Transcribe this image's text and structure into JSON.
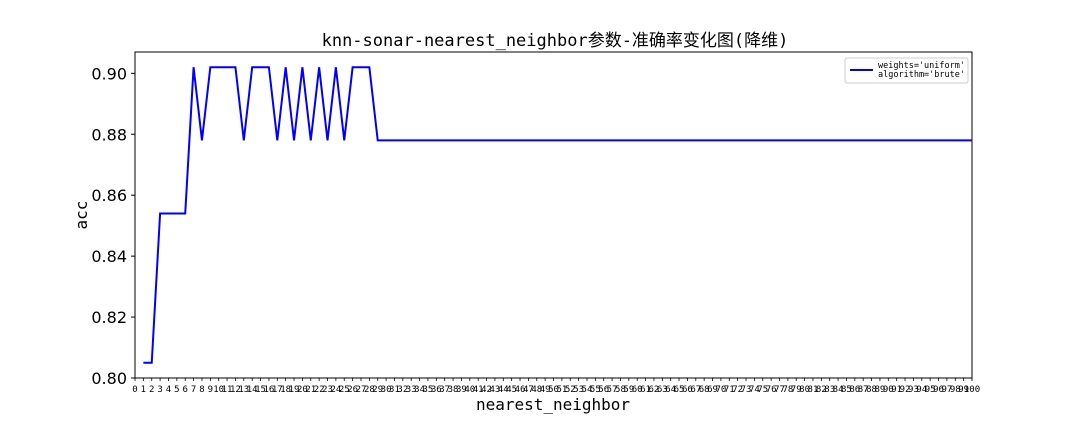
{
  "chart_data": {
    "type": "line",
    "title": "knn-sonar-nearest_neighbor参数-准确率变化图(降维)",
    "xlabel": "nearest_neighbor",
    "ylabel": "acc",
    "xlim": [
      0,
      100
    ],
    "ylim": [
      0.8,
      0.907
    ],
    "yticks": [
      0.8,
      0.82,
      0.84,
      0.86,
      0.88,
      0.9
    ],
    "ytick_labels": [
      "0.80",
      "0.82",
      "0.84",
      "0.86",
      "0.88",
      "0.90"
    ],
    "xticks": [
      0,
      1,
      2,
      3,
      4,
      5,
      6,
      7,
      8,
      9,
      10,
      11,
      12,
      13,
      14,
      15,
      16,
      17,
      18,
      19,
      20,
      21,
      22,
      23,
      24,
      25,
      26,
      27,
      28,
      29,
      30,
      31,
      32,
      33,
      34,
      35,
      36,
      37,
      38,
      39,
      40,
      41,
      42,
      43,
      44,
      45,
      46,
      47,
      48,
      49,
      50,
      51,
      52,
      53,
      54,
      55,
      56,
      57,
      58,
      59,
      60,
      61,
      62,
      63,
      64,
      65,
      66,
      67,
      68,
      69,
      70,
      71,
      72,
      73,
      74,
      75,
      76,
      77,
      78,
      79,
      80,
      81,
      82,
      83,
      84,
      85,
      86,
      87,
      88,
      89,
      90,
      91,
      92,
      93,
      94,
      95,
      96,
      97,
      98,
      99,
      100
    ],
    "legend": {
      "position": "top-right",
      "entries": [
        "weights='uniform'\nalgorithm='brute'"
      ]
    },
    "series": [
      {
        "name": "weights='uniform'\nalgorithm='brute'",
        "color": "#0000ff",
        "x": [
          1,
          2,
          3,
          4,
          5,
          6,
          7,
          8,
          9,
          10,
          11,
          12,
          13,
          14,
          15,
          16,
          17,
          18,
          19,
          20,
          21,
          22,
          23,
          24,
          25,
          26,
          27,
          28,
          29,
          30,
          31,
          32,
          33,
          34,
          35,
          36,
          37,
          38,
          39,
          40,
          41,
          42,
          43,
          44,
          45,
          46,
          47,
          48,
          49,
          50,
          51,
          52,
          53,
          54,
          55,
          56,
          57,
          58,
          59,
          60,
          61,
          62,
          63,
          64,
          65,
          66,
          67,
          68,
          69,
          70,
          71,
          72,
          73,
          74,
          75,
          76,
          77,
          78,
          79,
          80,
          81,
          82,
          83,
          84,
          85,
          86,
          87,
          88,
          89,
          90,
          91,
          92,
          93,
          94,
          95,
          96,
          97,
          98,
          99,
          100
        ],
        "y": [
          0.805,
          0.805,
          0.854,
          0.854,
          0.854,
          0.854,
          0.902,
          0.878,
          0.902,
          0.902,
          0.902,
          0.902,
          0.878,
          0.902,
          0.902,
          0.902,
          0.878,
          0.902,
          0.878,
          0.902,
          0.878,
          0.902,
          0.878,
          0.902,
          0.878,
          0.902,
          0.902,
          0.902,
          0.878,
          0.878,
          0.878,
          0.878,
          0.878,
          0.878,
          0.878,
          0.878,
          0.878,
          0.878,
          0.878,
          0.878,
          0.878,
          0.878,
          0.878,
          0.878,
          0.878,
          0.878,
          0.878,
          0.878,
          0.878,
          0.878,
          0.878,
          0.878,
          0.878,
          0.878,
          0.878,
          0.878,
          0.878,
          0.878,
          0.878,
          0.878,
          0.878,
          0.878,
          0.878,
          0.878,
          0.878,
          0.878,
          0.878,
          0.878,
          0.878,
          0.878,
          0.878,
          0.878,
          0.878,
          0.878,
          0.878,
          0.878,
          0.878,
          0.878,
          0.878,
          0.878,
          0.878,
          0.878,
          0.878,
          0.878,
          0.878,
          0.878,
          0.878,
          0.878,
          0.878,
          0.878,
          0.878,
          0.878,
          0.878,
          0.878,
          0.878,
          0.878,
          0.878,
          0.878,
          0.878,
          0.878
        ]
      }
    ]
  }
}
